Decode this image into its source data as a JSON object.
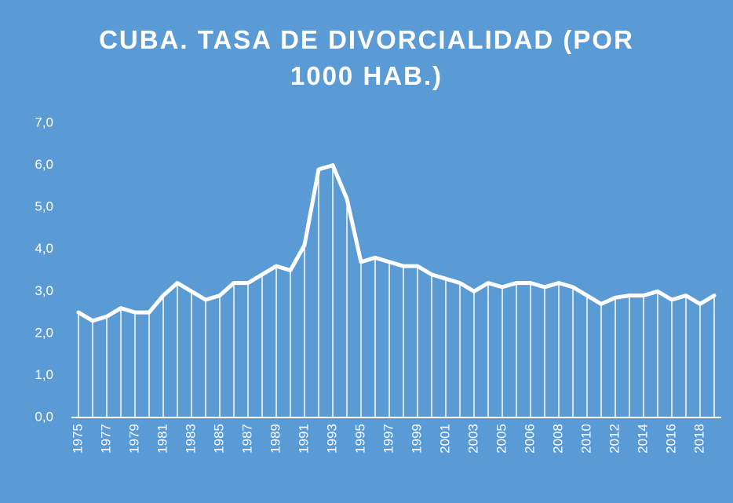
{
  "chart_data": {
    "type": "line",
    "title": "CUBA. TASA DE DIVORCIALIDAD (POR 1000 HAB.)",
    "categories": [
      "1975",
      null,
      "1977",
      null,
      "1979",
      null,
      "1981",
      null,
      "1983",
      null,
      "1985",
      null,
      "1987",
      null,
      "1989",
      null,
      "1991",
      null,
      "1993",
      null,
      "1995",
      null,
      "1997",
      null,
      "1999",
      null,
      "2001",
      null,
      "2003",
      null,
      "2005",
      null,
      "2006",
      null,
      "2008",
      null,
      "2010",
      null,
      "2012",
      null,
      "2014",
      null,
      "2016",
      null,
      "2018",
      null
    ],
    "series": [
      {
        "name": "Tasa de divorcialidad",
        "color": "#ffffff",
        "values": [
          2.5,
          2.3,
          2.4,
          2.6,
          2.5,
          2.5,
          2.9,
          3.2,
          3.0,
          2.8,
          2.9,
          3.2,
          3.2,
          3.4,
          3.6,
          3.5,
          4.1,
          5.9,
          6.0,
          5.2,
          3.7,
          3.8,
          3.7,
          3.6,
          3.6,
          3.4,
          3.3,
          3.2,
          3.0,
          3.2,
          3.1,
          3.2,
          3.2,
          3.1,
          3.2,
          3.1,
          2.9,
          2.7,
          2.85,
          2.9,
          2.9,
          3.0,
          2.8,
          2.9,
          2.7,
          2.9
        ]
      }
    ],
    "ylim": [
      0,
      7
    ],
    "yticks": [
      {
        "value": 0,
        "label": "0,0"
      },
      {
        "value": 1,
        "label": "1,0"
      },
      {
        "value": 2,
        "label": "2,0"
      },
      {
        "value": 3,
        "label": "3,0"
      },
      {
        "value": 4,
        "label": "4,0"
      },
      {
        "value": 5,
        "label": "5,0"
      },
      {
        "value": 6,
        "label": "6,0"
      },
      {
        "value": 7,
        "label": "7,0"
      }
    ],
    "drop_lines": true
  }
}
